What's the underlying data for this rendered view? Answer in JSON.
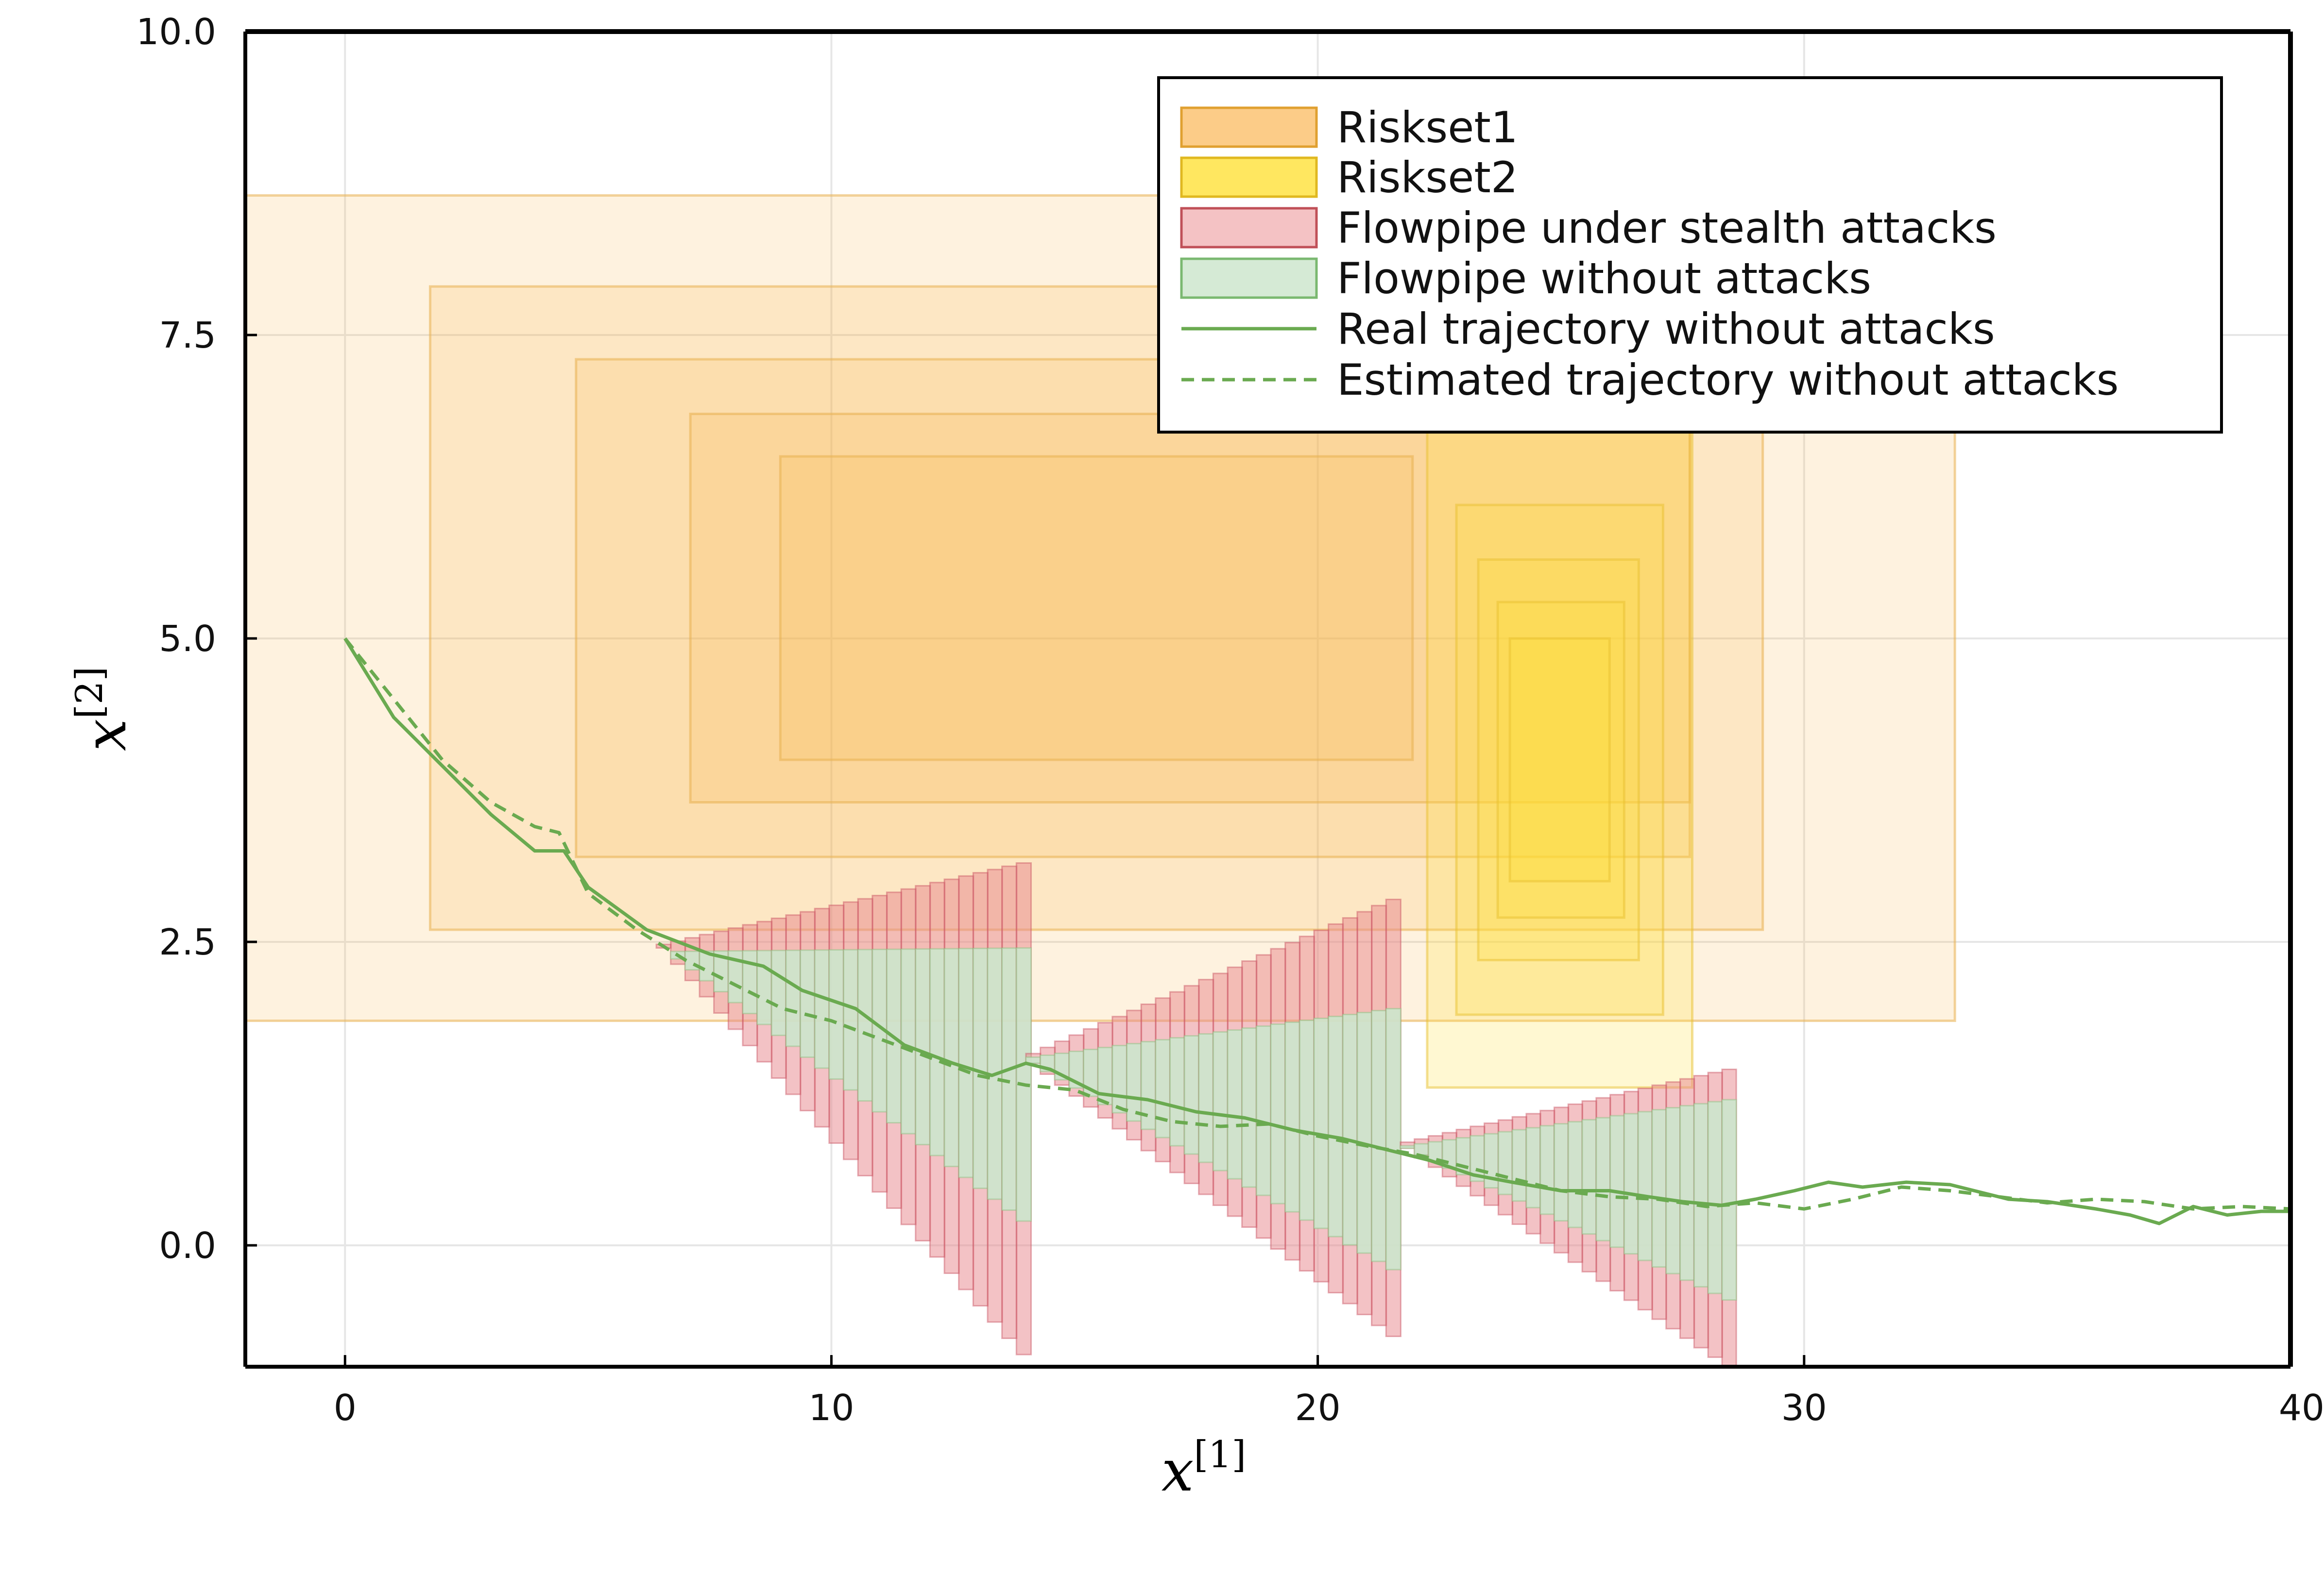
{
  "chart_data": {
    "type": "line",
    "title": "",
    "xlabel": {
      "base": "x",
      "sup": "[1]"
    },
    "ylabel": {
      "base": "x",
      "sup": "[2]"
    },
    "xlim": [
      -2.05,
      40
    ],
    "ylim": [
      -1.0,
      10.0
    ],
    "xticks": [
      0,
      10,
      20,
      30,
      40
    ],
    "xtick_labels": [
      "0",
      "10",
      "20",
      "30",
      "40"
    ],
    "yticks": [
      0.0,
      2.5,
      5.0,
      7.5,
      10.0
    ],
    "ytick_labels": [
      "0.0",
      "2.5",
      "5.0",
      "7.5",
      "10.0"
    ],
    "grid": true,
    "legend_position": "top-right",
    "colors": {
      "riskset1": "#fbb040",
      "riskset2": "#ffe030",
      "flowpipe_attack": "#e8858c",
      "flowpipe_normal": "#cce6cc",
      "trajectory": "#6aaa50"
    },
    "legend": [
      {
        "label": "Riskset1",
        "kind": "patch",
        "fill": "#fccc88",
        "stroke": "#e0a030"
      },
      {
        "label": "Riskset2",
        "kind": "patch",
        "fill": "#ffe760",
        "stroke": "#e0b820"
      },
      {
        "label": "Flowpipe under stealth attacks",
        "kind": "patch",
        "fill": "#f4c2c4",
        "stroke": "#c05058"
      },
      {
        "label": "Flowpipe without attacks",
        "kind": "patch",
        "fill": "#d5ead5",
        "stroke": "#7ab870"
      },
      {
        "label": "Real trajectory without attacks",
        "kind": "line",
        "dash": false
      },
      {
        "label": "Estimated trajectory without attacks",
        "kind": "line",
        "dash": true
      }
    ],
    "riskset1_boxes": [
      {
        "x": [
          -2.05,
          33.1
        ],
        "y": [
          1.85,
          8.65
        ]
      },
      {
        "x": [
          1.75,
          29.15
        ],
        "y": [
          2.6,
          7.9
        ]
      },
      {
        "x": [
          4.75,
          27.65
        ],
        "y": [
          3.2,
          7.3
        ]
      },
      {
        "x": [
          7.1,
          27.65
        ],
        "y": [
          3.65,
          6.85
        ]
      },
      {
        "x": [
          8.95,
          21.95
        ],
        "y": [
          4.0,
          6.5
        ]
      }
    ],
    "riskset2_boxes": [
      {
        "x": [
          22.25,
          27.7
        ],
        "y": [
          1.3,
          7.3
        ]
      },
      {
        "x": [
          22.85,
          27.1
        ],
        "y": [
          1.9,
          6.1
        ]
      },
      {
        "x": [
          23.3,
          26.6
        ],
        "y": [
          2.35,
          5.65
        ]
      },
      {
        "x": [
          23.7,
          26.3
        ],
        "y": [
          2.7,
          5.3
        ]
      },
      {
        "x": [
          23.95,
          26.0
        ],
        "y": [
          3.0,
          5.0
        ]
      }
    ],
    "flowpipes": [
      {
        "x_start": 6.4,
        "x_end": 14.1,
        "steps": 26,
        "center_start": 2.45,
        "center_end": 0.15,
        "attack_top_start": 2.48,
        "attack_top_end": 3.15,
        "attack_bottom_end": -0.9,
        "normal_top_start": 2.42,
        "normal_top_end": 2.45,
        "normal_bottom_end": 0.2
      },
      {
        "x_start": 14.0,
        "x_end": 21.7,
        "steps": 26,
        "center_start": 1.5,
        "center_end": 0.8,
        "attack_top_start": 1.58,
        "attack_top_end": 2.85,
        "attack_bottom_end": -0.75,
        "normal_top_start": 1.55,
        "normal_top_end": 1.95,
        "normal_bottom_end": -0.2
      },
      {
        "x_start": 21.7,
        "x_end": 28.6,
        "steps": 24,
        "center_start": 0.8,
        "center_end": 0.35,
        "attack_top_start": 0.85,
        "attack_top_end": 1.45,
        "attack_bottom_end": -1.0,
        "normal_top_start": 0.82,
        "normal_top_end": 1.2,
        "normal_bottom_end": -0.45
      }
    ],
    "series": [
      {
        "name": "Real trajectory without attacks",
        "x": [
          0,
          1,
          2,
          3,
          3.9,
          4.5,
          5.0,
          6.2,
          7.5,
          8.6,
          9.4,
          10.5,
          11.5,
          12.5,
          13.3,
          14.0,
          14.5,
          15.5,
          16.5,
          17.5,
          18.5,
          19.5,
          20.5,
          21.5,
          22.3,
          23.2,
          24.0,
          25.0,
          26.0,
          26.8,
          27.5,
          28.3,
          29.0,
          29.8,
          30.5,
          31.2,
          32.1,
          33.0,
          34.2,
          35.0,
          36.0,
          36.7,
          37.3,
          38.0,
          38.7,
          39.4,
          40.0
        ],
        "y": [
          5.0,
          4.35,
          3.95,
          3.55,
          3.25,
          3.25,
          2.95,
          2.6,
          2.4,
          2.3,
          2.1,
          1.95,
          1.65,
          1.5,
          1.4,
          1.5,
          1.45,
          1.25,
          1.2,
          1.1,
          1.05,
          0.95,
          0.88,
          0.78,
          0.7,
          0.58,
          0.52,
          0.45,
          0.45,
          0.4,
          0.36,
          0.33,
          0.38,
          0.45,
          0.52,
          0.48,
          0.52,
          0.5,
          0.38,
          0.36,
          0.3,
          0.25,
          0.18,
          0.32,
          0.25,
          0.28,
          0.28
        ]
      },
      {
        "name": "Estimated trajectory without attacks",
        "x": [
          0,
          1,
          2,
          3,
          3.9,
          4.4,
          5.0,
          6.0,
          7.0,
          8.0,
          9.0,
          10.0,
          11.0,
          12.0,
          13.0,
          14.0,
          15.0,
          16.0,
          17.0,
          18.0,
          19.0,
          20.0,
          21.0,
          22.0,
          23.0,
          24.0,
          25.0,
          26.0,
          27.0,
          28.0,
          29.0,
          30.0,
          31.0,
          32.0,
          33.0,
          34.0,
          35.0,
          36.0,
          37.0,
          38.0,
          39.0,
          40.0
        ],
        "y": [
          5.0,
          4.5,
          4.0,
          3.65,
          3.45,
          3.4,
          2.9,
          2.6,
          2.35,
          2.15,
          1.95,
          1.85,
          1.7,
          1.55,
          1.4,
          1.32,
          1.28,
          1.12,
          1.02,
          0.98,
          1.0,
          0.9,
          0.82,
          0.75,
          0.65,
          0.55,
          0.45,
          0.4,
          0.38,
          0.32,
          0.35,
          0.3,
          0.38,
          0.48,
          0.45,
          0.4,
          0.35,
          0.38,
          0.36,
          0.3,
          0.32,
          0.3
        ]
      }
    ]
  }
}
